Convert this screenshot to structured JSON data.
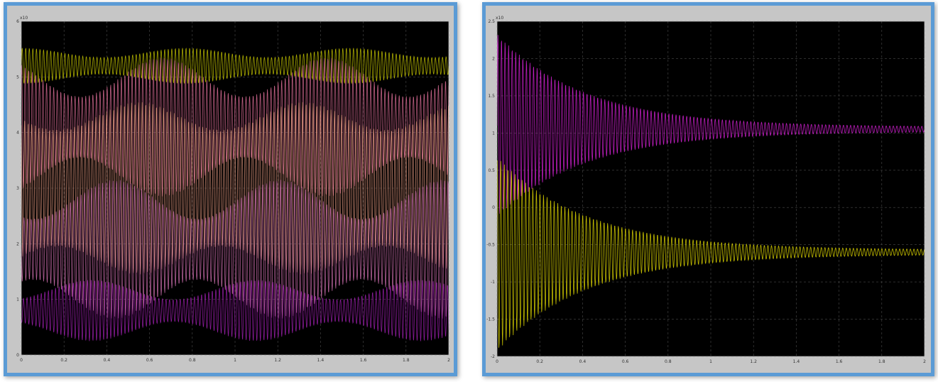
{
  "chart_data": [
    {
      "type": "line",
      "title": "",
      "xlabel": "",
      "ylabel": "",
      "xlim": [
        0,
        2
      ],
      "ylim": [
        0,
        6
      ],
      "y_exponent_label": "x10",
      "x_tick_labels": [
        "0",
        "0.2",
        "0.4",
        "0.6",
        "0.8",
        "1",
        "1.2",
        "1.4",
        "1.6",
        "1.8",
        "2"
      ],
      "y_tick_labels": [
        "0",
        "1",
        "2",
        "3",
        "4",
        "5",
        "6"
      ],
      "grid": true,
      "background": "#000000",
      "series": [
        {
          "color": "#c8c800",
          "center": 5.2,
          "amplitude_range": [
            0.15,
            0.32
          ]
        },
        {
          "color": "#e0709a",
          "center": 4.1,
          "amplitude_range": [
            0.55,
            1.25
          ]
        },
        {
          "color": "#f4a58a",
          "center": 3.0,
          "amplitude_range": [
            1.05,
            1.55
          ]
        },
        {
          "color": "#d070b0",
          "center": 1.9,
          "amplitude_range": [
            0.55,
            1.25
          ]
        },
        {
          "color": "#a020b0",
          "center": 0.8,
          "amplitude_range": [
            0.2,
            0.55
          ]
        }
      ]
    },
    {
      "type": "line",
      "title": "",
      "xlabel": "",
      "ylabel": "",
      "xlim": [
        0,
        2
      ],
      "ylim": [
        -2,
        2.5
      ],
      "y_exponent_label": "x10",
      "x_tick_labels": [
        "0",
        "0.2",
        "0.4",
        "0.6",
        "0.8",
        "1",
        "1.2",
        "1.4",
        "1.6",
        "1.8",
        "2"
      ],
      "y_tick_labels": [
        "-2",
        "-1.5",
        "-1",
        "-0.5",
        "0",
        "0.5",
        "1",
        "1.5",
        "2",
        "2.5"
      ],
      "grid": true,
      "background": "#000000",
      "series": [
        {
          "color": "#d020d0",
          "initial_max": 2.3,
          "initial_min": -0.1,
          "final_value": 1.05,
          "decay": 2.4
        },
        {
          "color": "#d8d000",
          "initial_max": 0.65,
          "initial_min": -1.9,
          "final_value": -0.6,
          "decay": 2.4
        }
      ]
    }
  ]
}
